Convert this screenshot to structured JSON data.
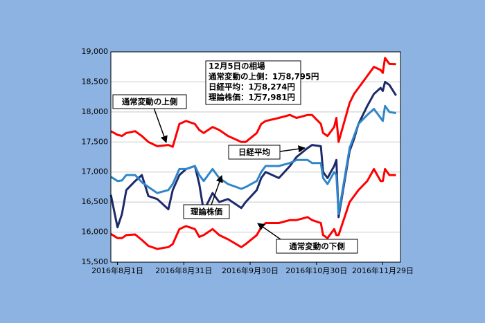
{
  "chart_data": {
    "type": "line",
    "x": [
      "2016-07-29",
      "2016-08-01",
      "2016-08-03",
      "2016-08-05",
      "2016-08-09",
      "2016-08-12",
      "2016-08-15",
      "2016-08-19",
      "2016-08-24",
      "2016-08-26",
      "2016-08-29",
      "2016-09-01",
      "2016-09-05",
      "2016-09-07",
      "2016-09-09",
      "2016-09-13",
      "2016-09-16",
      "2016-09-20",
      "2016-09-26",
      "2016-09-28",
      "2016-10-03",
      "2016-10-05",
      "2016-10-07",
      "2016-10-13",
      "2016-10-18",
      "2016-10-21",
      "2016-10-26",
      "2016-10-28",
      "2016-11-01",
      "2016-11-02",
      "2016-11-04",
      "2016-11-07",
      "2016-11-08",
      "2016-11-09",
      "2016-11-14",
      "2016-11-16",
      "2016-11-18",
      "2016-11-22",
      "2016-11-25",
      "2016-11-28",
      "2016-11-29",
      "2016-11-30",
      "2016-12-02",
      "2016-12-05"
    ],
    "series": [
      {
        "name": "通常変動の上側",
        "color": "#ff0000",
        "values": [
          17680,
          17620,
          17600,
          17650,
          17680,
          17600,
          17500,
          17430,
          17450,
          17420,
          17800,
          17850,
          17800,
          17700,
          17650,
          17750,
          17700,
          17600,
          17500,
          17500,
          17650,
          17800,
          17850,
          17900,
          17950,
          17900,
          17950,
          17950,
          17800,
          17650,
          17600,
          17750,
          17900,
          17500,
          18150,
          18300,
          18400,
          18600,
          18750,
          18700,
          18650,
          18900,
          18800,
          18795
        ]
      },
      {
        "name": "日経平均",
        "color": "#1c2a6b",
        "values": [
          16620,
          16080,
          16300,
          16700,
          16850,
          16950,
          16600,
          16550,
          16380,
          16700,
          16950,
          17050,
          17100,
          16800,
          16350,
          16650,
          16500,
          16550,
          16400,
          16500,
          16700,
          16900,
          17000,
          16900,
          17100,
          17250,
          17400,
          17450,
          17430,
          17000,
          16900,
          17100,
          17200,
          16250,
          17350,
          17550,
          17800,
          18100,
          18300,
          18400,
          18350,
          18500,
          18450,
          18274
        ]
      },
      {
        "name": "理論株価",
        "color": "#2f86c9",
        "values": [
          16920,
          16850,
          16860,
          16950,
          16950,
          16830,
          16750,
          16650,
          16700,
          16800,
          17050,
          17050,
          17100,
          16950,
          16850,
          17050,
          16900,
          16800,
          16720,
          16750,
          16850,
          17000,
          17100,
          17100,
          17150,
          17200,
          17200,
          17150,
          17150,
          16900,
          16800,
          17000,
          16950,
          16300,
          17400,
          17600,
          17800,
          17950,
          18050,
          17900,
          17850,
          18100,
          18000,
          17981
        ]
      },
      {
        "name": "通常変動の下側",
        "color": "#ff0000",
        "values": [
          15970,
          15900,
          15900,
          15950,
          15960,
          15870,
          15770,
          15720,
          15750,
          15800,
          16050,
          16100,
          16050,
          15920,
          15950,
          16050,
          15950,
          15880,
          15750,
          15800,
          15950,
          16080,
          16150,
          16150,
          16200,
          16200,
          16250,
          16200,
          16150,
          15950,
          15900,
          16050,
          15950,
          15950,
          16500,
          16600,
          16700,
          16850,
          17050,
          16850,
          16850,
          17050,
          16950,
          16950
        ]
      }
    ],
    "annotations": [
      "12月5日の相場",
      "通常変動の上側：1万8,795円",
      "日経平均：1万8,274円",
      "理論株価：1万7,981円"
    ],
    "xlim": [
      "2016-07-29",
      "2016-12-07"
    ],
    "xticks": [
      {
        "value": "2016-08-01",
        "label": "2016年8月1日"
      },
      {
        "value": "2016-08-31",
        "label": "2016年8月31日"
      },
      {
        "value": "2016-09-30",
        "label": "2016年9月30日"
      },
      {
        "value": "2016-10-30",
        "label": "2016年10月30日"
      },
      {
        "value": "2016-11-29",
        "label": "2016年11月29日"
      }
    ],
    "ylim": [
      15500,
      19000
    ],
    "yticks": [
      {
        "value": 15500,
        "label": "15,500"
      },
      {
        "value": 16000,
        "label": "16,000"
      },
      {
        "value": 16500,
        "label": "16,500"
      },
      {
        "value": 17000,
        "label": "17,000"
      },
      {
        "value": 17500,
        "label": "17,500"
      },
      {
        "value": 18000,
        "label": "18,000"
      },
      {
        "value": 18500,
        "label": "18,500"
      },
      {
        "value": 19000,
        "label": "19,000"
      }
    ],
    "grid": true
  }
}
